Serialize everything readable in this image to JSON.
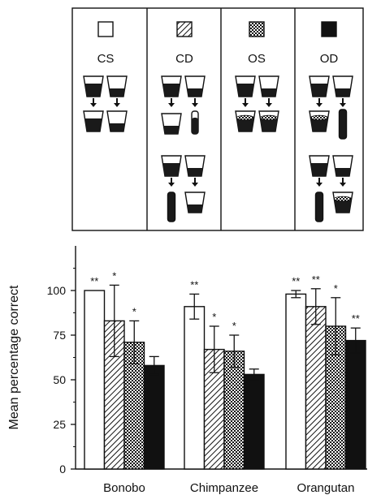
{
  "legend_panel": {
    "conditions": [
      {
        "code": "CS",
        "fill": "white"
      },
      {
        "code": "CD",
        "fill": "hatch"
      },
      {
        "code": "OS",
        "fill": "check"
      },
      {
        "code": "OD",
        "fill": "black"
      }
    ]
  },
  "colors": {
    "ink": "#111111",
    "paper": "#ffffff",
    "liquid": "#1a1a1a"
  },
  "chart_data": {
    "type": "bar",
    "categories": [
      "Bonobo",
      "Chimpanzee",
      "Orangutan"
    ],
    "ylabel": "Mean percentage correct",
    "xlabel": "",
    "ylim": [
      0,
      125
    ],
    "yticks": [
      0,
      25,
      50,
      75,
      100
    ],
    "series": [
      {
        "key": "CS",
        "fill": "white",
        "values": [
          100,
          91,
          98
        ],
        "err": [
          0,
          7,
          2
        ],
        "sig": [
          "**",
          "**",
          "**"
        ]
      },
      {
        "key": "CD",
        "fill": "hatch",
        "values": [
          83,
          67,
          91
        ],
        "err": [
          20,
          13,
          10
        ],
        "sig": [
          "*",
          "*",
          "**"
        ]
      },
      {
        "key": "OS",
        "fill": "check",
        "values": [
          71,
          66,
          80
        ],
        "err": [
          12,
          9,
          16
        ],
        "sig": [
          "*",
          "*",
          "*"
        ]
      },
      {
        "key": "OD",
        "fill": "black",
        "values": [
          58,
          53,
          72
        ],
        "err": [
          5,
          3,
          7
        ],
        "sig": [
          "",
          "",
          "**"
        ]
      }
    ]
  }
}
